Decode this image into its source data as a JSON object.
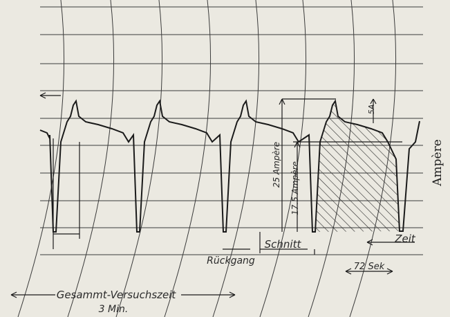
{
  "chart_data": {
    "type": "line",
    "title": "",
    "ylabel": "Ampère",
    "xlabel": "Gesammt-Versuchszeit",
    "x_total_label": "3 Min.",
    "grid": true,
    "annotations": {
      "current_5a": "5A",
      "current_25a": "25 Ampère",
      "current_175a": "17.5 Ampère",
      "rueckgang": "Rückgang",
      "schnitt": "Schnitt",
      "zeit": "Zeit",
      "dauer": "72 Sek"
    },
    "cycles": 5,
    "peak_current": 25,
    "mean_cut_current": 17.5,
    "cut_duration_s": 72
  },
  "colors": {
    "paper": "#ebe9e1",
    "grid": "#3a3a3a",
    "trace": "#1a1a1a"
  }
}
